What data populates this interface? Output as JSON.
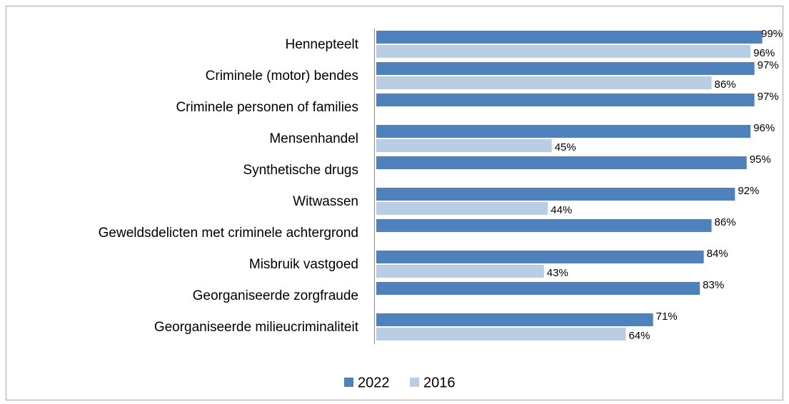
{
  "chart_data": {
    "type": "hbar",
    "categories": [
      "Hennepteelt",
      "Criminele (motor) bendes",
      "Criminele personen of families",
      "Mensenhandel",
      "Synthetische drugs",
      "Witwassen",
      "Geweldsdelicten met criminele achtergrond",
      "Misbruik vastgoed",
      "Georganiseerde zorgfraude",
      "Georganiseerde milieucriminaliteit"
    ],
    "series": [
      {
        "name": "2022",
        "color": "#4f81bd",
        "values": [
          99,
          97,
          97,
          96,
          95,
          92,
          86,
          84,
          83,
          71
        ],
        "value_labels": [
          "99%",
          "97%",
          "97%",
          "96%",
          "95%",
          "92%",
          "86%",
          "84%",
          "83%",
          "71%"
        ]
      },
      {
        "name": "2016",
        "color": "#b9cde5",
        "values": [
          96,
          86,
          null,
          45,
          null,
          44,
          null,
          43,
          null,
          64
        ],
        "value_labels": [
          "96%",
          "86%",
          null,
          "45%",
          null,
          "44%",
          null,
          "43%",
          null,
          "64%"
        ]
      }
    ],
    "xlim": [
      0,
      100
    ],
    "legend": "bottom"
  }
}
